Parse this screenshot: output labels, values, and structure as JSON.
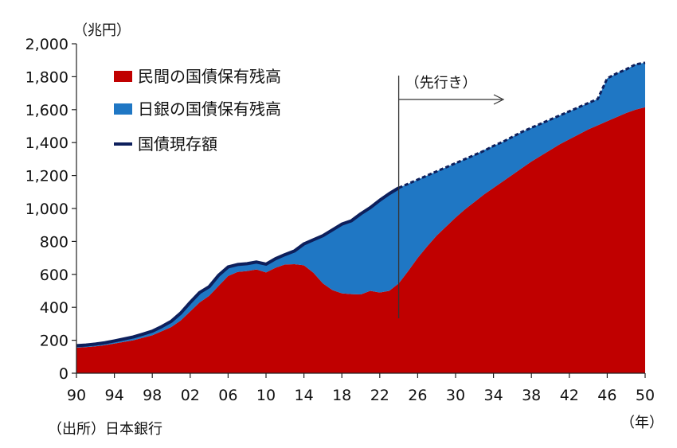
{
  "chart_data": {
    "type": "area",
    "y_unit_label": "（兆円）",
    "x_unit_label": "（年）",
    "source_label": "（出所）日本銀行",
    "forecast_label": "（先行き）",
    "forecast_start": 2024,
    "ylim": [
      0,
      2000
    ],
    "y_ticks": [
      0,
      200,
      400,
      600,
      800,
      1000,
      1200,
      1400,
      1600,
      1800,
      2000
    ],
    "y_tick_labels": [
      "0",
      "200",
      "400",
      "600",
      "800",
      "1,000",
      "1,200",
      "1,400",
      "1,600",
      "1,800",
      "2,000"
    ],
    "xlim": [
      1990,
      2050
    ],
    "x_ticks": [
      1990,
      1994,
      1998,
      2002,
      2006,
      2010,
      2014,
      2018,
      2022,
      2026,
      2030,
      2034,
      2038,
      2042,
      2046,
      2050
    ],
    "x_tick_labels": [
      "90",
      "94",
      "98",
      "02",
      "06",
      "10",
      "14",
      "18",
      "22",
      "26",
      "30",
      "34",
      "38",
      "42",
      "46",
      "50"
    ],
    "grid": false,
    "legend_position": "top-left",
    "colors": {
      "private": "#c00000",
      "boj": "#1f77c4",
      "total": "#0d1f5c"
    },
    "series": [
      {
        "name": "民間の国債保有残高",
        "kind": "area",
        "x": [
          1990,
          1991,
          1992,
          1993,
          1994,
          1995,
          1996,
          1997,
          1998,
          1999,
          2000,
          2001,
          2002,
          2003,
          2004,
          2005,
          2006,
          2007,
          2008,
          2009,
          2010,
          2011,
          2012,
          2013,
          2014,
          2015,
          2016,
          2017,
          2018,
          2019,
          2020,
          2021,
          2022,
          2023,
          2024,
          2025,
          2026,
          2027,
          2028,
          2029,
          2030,
          2031,
          2032,
          2033,
          2034,
          2035,
          2036,
          2037,
          2038,
          2039,
          2040,
          2041,
          2042,
          2043,
          2044,
          2045,
          2046,
          2047,
          2048,
          2049,
          2050
        ],
        "values": [
          155,
          158,
          163,
          170,
          180,
          190,
          200,
          215,
          230,
          255,
          280,
          320,
          375,
          430,
          470,
          530,
          590,
          615,
          620,
          630,
          612,
          640,
          660,
          662,
          655,
          610,
          545,
          505,
          485,
          480,
          478,
          500,
          490,
          500,
          545,
          620,
          700,
          770,
          835,
          890,
          945,
          995,
          1040,
          1085,
          1125,
          1165,
          1205,
          1245,
          1285,
          1320,
          1355,
          1390,
          1420,
          1450,
          1480,
          1505,
          1530,
          1555,
          1580,
          1600,
          1615
        ]
      },
      {
        "name": "日銀の国債保有残高",
        "kind": "area",
        "x": [
          1990,
          1991,
          1992,
          1993,
          1994,
          1995,
          1996,
          1997,
          1998,
          1999,
          2000,
          2001,
          2002,
          2003,
          2004,
          2005,
          2006,
          2007,
          2008,
          2009,
          2010,
          2011,
          2012,
          2013,
          2014,
          2015,
          2016,
          2017,
          2018,
          2019,
          2020,
          2021,
          2022,
          2023,
          2024,
          2025,
          2026,
          2027,
          2028,
          2029,
          2030,
          2031,
          2032,
          2033,
          2034,
          2035,
          2036,
          2037,
          2038,
          2039,
          2040,
          2041,
          2042,
          2043,
          2044,
          2045,
          2046,
          2047,
          2048,
          2049,
          2050
        ],
        "values": [
          12,
          13,
          14,
          15,
          16,
          18,
          20,
          22,
          25,
          28,
          35,
          45,
          55,
          60,
          55,
          65,
          55,
          45,
          45,
          45,
          50,
          55,
          60,
          80,
          130,
          200,
          290,
          365,
          420,
          445,
          490,
          505,
          560,
          590,
          580,
          530,
          475,
          430,
          390,
          360,
          330,
          305,
          285,
          270,
          255,
          240,
          230,
          220,
          205,
          195,
          185,
          175,
          170,
          165,
          160,
          160,
          260,
          265,
          265,
          275,
          270
        ]
      },
      {
        "name": "国債現存額",
        "kind": "line",
        "x": [
          1990,
          1991,
          1992,
          1993,
          1994,
          1995,
          1996,
          1997,
          1998,
          1999,
          2000,
          2001,
          2002,
          2003,
          2004,
          2005,
          2006,
          2007,
          2008,
          2009,
          2010,
          2011,
          2012,
          2013,
          2014,
          2015,
          2016,
          2017,
          2018,
          2019,
          2020,
          2021,
          2022,
          2023,
          2024,
          2025,
          2026,
          2027,
          2028,
          2029,
          2030,
          2031,
          2032,
          2033,
          2034,
          2035,
          2036,
          2037,
          2038,
          2039,
          2040,
          2041,
          2042,
          2043,
          2044,
          2045,
          2046,
          2047,
          2048,
          2049,
          2050
        ],
        "values": [
          167,
          171,
          177,
          185,
          196,
          208,
          220,
          237,
          255,
          283,
          315,
          365,
          430,
          490,
          525,
          595,
          645,
          660,
          665,
          675,
          662,
          695,
          720,
          742,
          785,
          810,
          835,
          870,
          905,
          925,
          968,
          1005,
          1050,
          1090,
          1125,
          1150,
          1175,
          1200,
          1225,
          1250,
          1275,
          1300,
          1325,
          1350,
          1380,
          1405,
          1435,
          1465,
          1490,
          1515,
          1540,
          1565,
          1590,
          1615,
          1640,
          1665,
          1790,
          1820,
          1845,
          1875,
          1885
        ]
      }
    ]
  }
}
